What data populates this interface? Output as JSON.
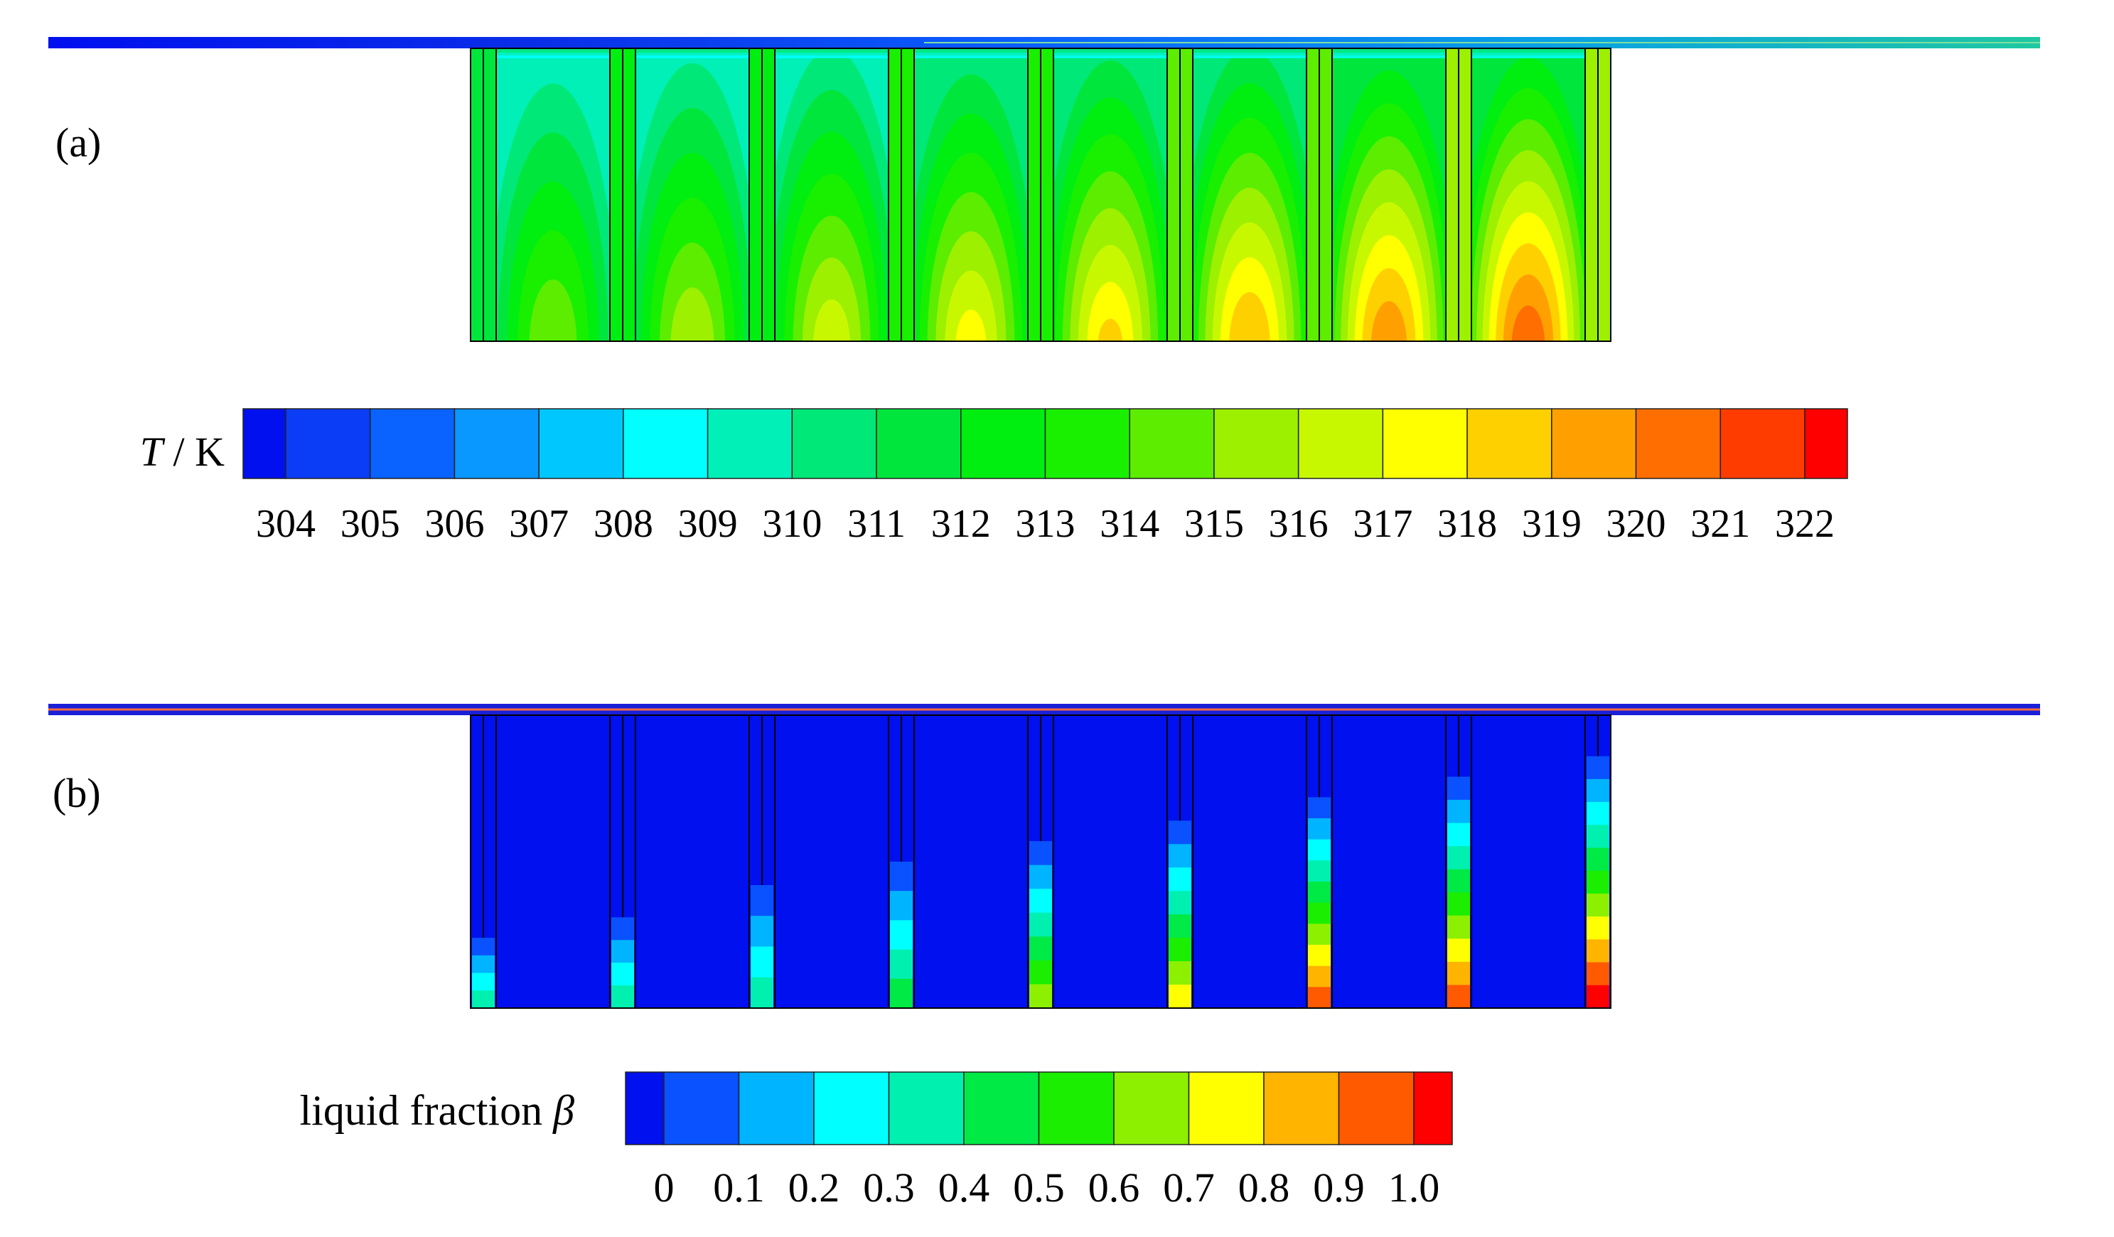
{
  "panel_a": {
    "label": "(a)",
    "colorbar": {
      "title_italic": "T",
      "title_rest": " / K",
      "ticks": [
        "304",
        "305",
        "306",
        "307",
        "308",
        "309",
        "310",
        "311",
        "312",
        "313",
        "314",
        "315",
        "316",
        "317",
        "318",
        "319",
        "320",
        "321",
        "322"
      ],
      "colors": [
        "#0010ee",
        "#0a3df5",
        "#0a62ff",
        "#0898ff",
        "#00c8ff",
        "#00ffff",
        "#00f0b8",
        "#00e878",
        "#00e63c",
        "#00ee10",
        "#18f000",
        "#5ced00",
        "#9cf000",
        "#c8f800",
        "#ffff00",
        "#ffd000",
        "#ffa000",
        "#ff6e00",
        "#ff3c00",
        "#ff0000"
      ]
    },
    "hot_spot_levels": [
      0.5,
      0.57,
      0.63,
      0.69,
      0.75,
      0.81,
      0.87,
      0.94
    ]
  },
  "panel_b": {
    "label": "(b)",
    "colorbar": {
      "title_text": "liquid fraction ",
      "title_symbol": "β",
      "ticks": [
        "0",
        "0.1",
        "0.2",
        "0.3",
        "0.4",
        "0.5",
        "0.6",
        "0.7",
        "0.8",
        "0.9",
        "1.0"
      ],
      "colors": [
        "#0010ee",
        "#0a52ff",
        "#00b4ff",
        "#00ffff",
        "#00f0b0",
        "#00ea46",
        "#1cee00",
        "#8cf000",
        "#ffff00",
        "#ffb400",
        "#ff5a00",
        "#ff0000"
      ]
    },
    "melt_fronts": [
      0.76,
      0.69,
      0.58,
      0.5,
      0.43,
      0.36,
      0.28,
      0.21,
      0.14
    ],
    "max_liquid_fraction": [
      0.25,
      0.25,
      0.3,
      0.42,
      0.58,
      0.72,
      0.85,
      0.92,
      0.95
    ]
  }
}
